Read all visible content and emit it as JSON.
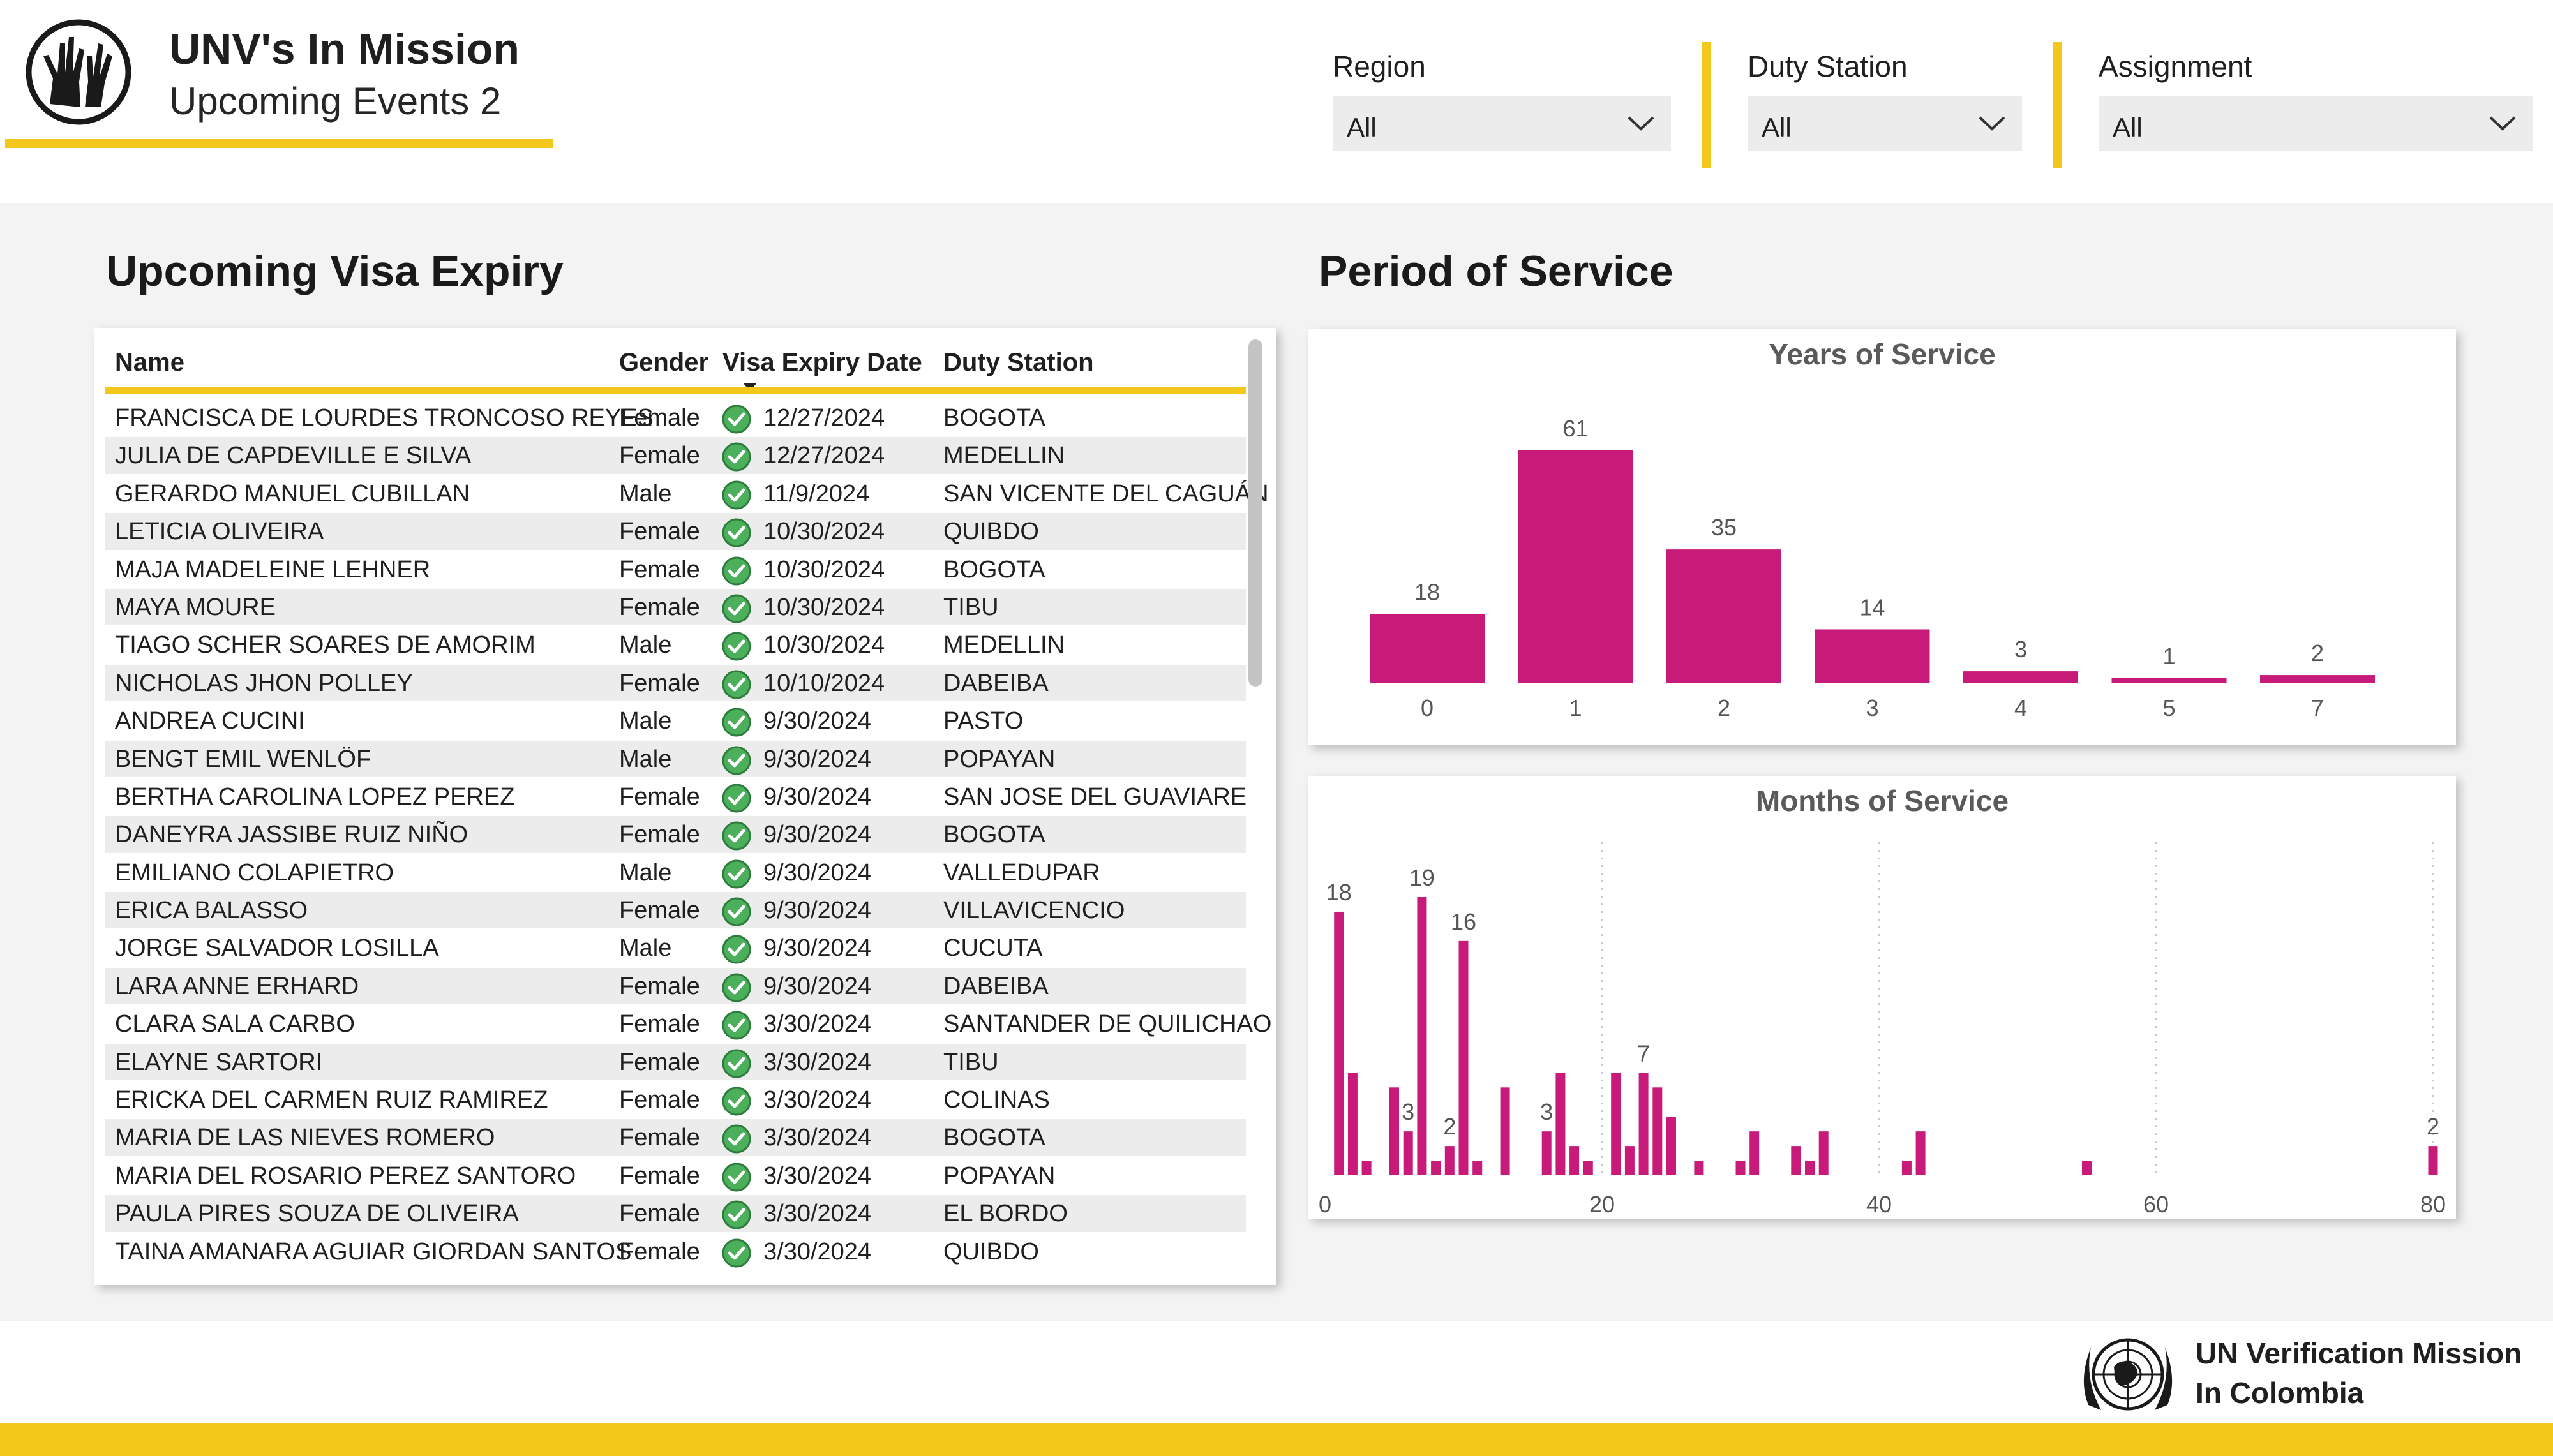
{
  "header": {
    "title": "UNV's In Mission",
    "subtitle": "Upcoming Events 2",
    "logo_icon": "hands-globe-icon"
  },
  "filters": [
    {
      "label": "Region",
      "value": "All"
    },
    {
      "label": "Duty Station",
      "value": "All"
    },
    {
      "label": "Assignment",
      "value": "All"
    }
  ],
  "visa_section": {
    "title": "Upcoming Visa Expiry",
    "columns": [
      "Name",
      "Gender",
      "Visa Expiry Date",
      "Duty Station"
    ],
    "sort_column": "Visa Expiry Date",
    "status_icon": "green-check-icon",
    "rows": [
      [
        "FRANCISCA DE LOURDES TRONCOSO REYES",
        "Female",
        "12/27/2024",
        "BOGOTA"
      ],
      [
        "JULIA DE CAPDEVILLE E SILVA",
        "Female",
        "12/27/2024",
        "MEDELLIN"
      ],
      [
        "GERARDO MANUEL CUBILLAN",
        "Male",
        "11/9/2024",
        "SAN VICENTE DEL CAGUÁN"
      ],
      [
        "LETICIA OLIVEIRA",
        "Female",
        "10/30/2024",
        "QUIBDO"
      ],
      [
        "MAJA MADELEINE LEHNER",
        "Female",
        "10/30/2024",
        "BOGOTA"
      ],
      [
        "MAYA MOURE",
        "Female",
        "10/30/2024",
        "TIBU"
      ],
      [
        "TIAGO SCHER SOARES DE AMORIM",
        "Male",
        "10/30/2024",
        "MEDELLIN"
      ],
      [
        "NICHOLAS JHON POLLEY",
        "Female",
        "10/10/2024",
        "DABEIBA"
      ],
      [
        "ANDREA CUCINI",
        "Male",
        "9/30/2024",
        "PASTO"
      ],
      [
        "BENGT EMIL WENLÖF",
        "Male",
        "9/30/2024",
        "POPAYAN"
      ],
      [
        "BERTHA CAROLINA LOPEZ PEREZ",
        "Female",
        "9/30/2024",
        "SAN JOSE DEL GUAVIARE"
      ],
      [
        "DANEYRA JASSIBE RUIZ NIÑO",
        "Female",
        "9/30/2024",
        "BOGOTA"
      ],
      [
        "EMILIANO COLAPIETRO",
        "Male",
        "9/30/2024",
        "VALLEDUPAR"
      ],
      [
        "ERICA BALASSO",
        "Female",
        "9/30/2024",
        "VILLAVICENCIO"
      ],
      [
        "JORGE SALVADOR LOSILLA",
        "Male",
        "9/30/2024",
        "CUCUTA"
      ],
      [
        "LARA ANNE ERHARD",
        "Female",
        "9/30/2024",
        "DABEIBA"
      ],
      [
        "CLARA SALA CARBO",
        "Female",
        "3/30/2024",
        "SANTANDER DE QUILICHAO"
      ],
      [
        "ELAYNE SARTORI",
        "Female",
        "3/30/2024",
        "TIBU"
      ],
      [
        "ERICKA DEL CARMEN RUIZ RAMIREZ",
        "Female",
        "3/30/2024",
        "COLINAS"
      ],
      [
        "MARIA DE LAS NIEVES ROMERO",
        "Female",
        "3/30/2024",
        "BOGOTA"
      ],
      [
        "MARIA DEL ROSARIO PEREZ SANTORO",
        "Female",
        "3/30/2024",
        "POPAYAN"
      ],
      [
        "PAULA PIRES SOUZA DE OLIVEIRA",
        "Female",
        "3/30/2024",
        "EL BORDO"
      ],
      [
        "TAINA AMANARA AGUIAR GIORDAN SANTOS",
        "Female",
        "3/30/2024",
        "QUIBDO"
      ]
    ]
  },
  "service_section": {
    "title": "Period of Service"
  },
  "chart_data": [
    {
      "type": "bar",
      "title": "Years of Service",
      "categories": [
        "0",
        "1",
        "2",
        "3",
        "4",
        "5",
        "7"
      ],
      "values": [
        18,
        61,
        35,
        14,
        3,
        1,
        2
      ],
      "data_labels": true,
      "color": "#c71a79",
      "ylim": [
        0,
        61
      ]
    },
    {
      "type": "bar",
      "title": "Months of Service",
      "x": [
        1,
        2,
        3,
        5,
        6,
        7,
        8,
        9,
        10,
        11,
        13,
        16,
        17,
        18,
        19,
        21,
        22,
        23,
        24,
        25,
        27,
        30,
        31,
        34,
        35,
        36,
        42,
        43,
        55,
        80
      ],
      "values": [
        18,
        7,
        1,
        6,
        3,
        19,
        1,
        2,
        16,
        1,
        6,
        3,
        7,
        2,
        1,
        7,
        2,
        7,
        6,
        4,
        1,
        1,
        3,
        2,
        1,
        3,
        1,
        3,
        1,
        2
      ],
      "labeled_points": [
        1,
        6,
        7,
        9,
        10,
        16,
        23,
        80
      ],
      "xticks": [
        0,
        20,
        40,
        60,
        80
      ],
      "xlim": [
        0,
        80
      ],
      "vertical_gridlines": true,
      "color": "#c71a79"
    }
  ],
  "footer": {
    "line1": "UN Verification Mission",
    "line2": "In Colombia",
    "emblem_icon": "un-emblem-icon"
  },
  "colors": {
    "accent": "#f4c81a",
    "bar": "#c71a79",
    "check": "#3d9a4f",
    "background": "#f3f3f3"
  }
}
